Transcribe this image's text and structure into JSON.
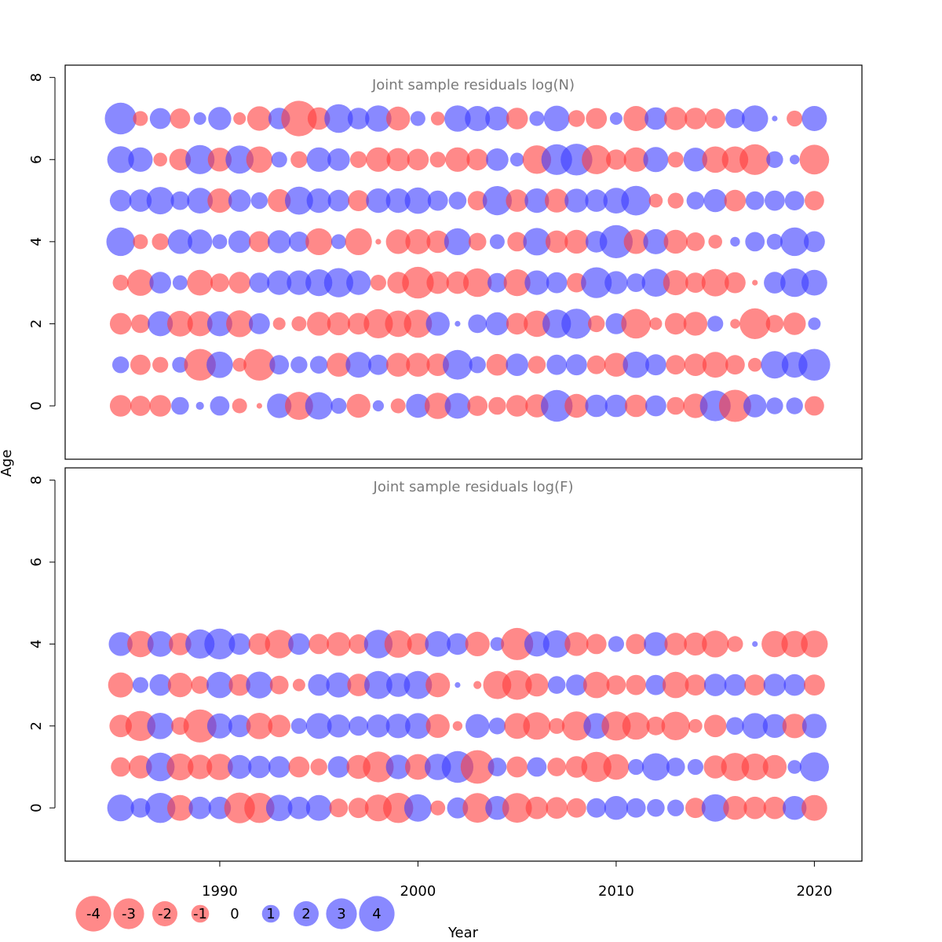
{
  "chart_data": {
    "type": "scatter",
    "ylabel": "Age",
    "xlabel": "Year",
    "x_ticks": [
      "1990",
      "2000",
      "2010",
      "2020"
    ],
    "y_ticks": [
      "0",
      "2",
      "4",
      "6",
      "8"
    ],
    "colors": {
      "negative": "#ff3b3b",
      "positive": "#3b3bff"
    },
    "xlim": [
      1982.2,
      2022.4
    ],
    "years": [
      1985,
      1986,
      1987,
      1988,
      1989,
      1990,
      1991,
      1992,
      1993,
      1994,
      1995,
      1996,
      1997,
      1998,
      1999,
      2000,
      2001,
      2002,
      2003,
      2004,
      2005,
      2006,
      2007,
      2008,
      2009,
      2010,
      2011,
      2012,
      2013,
      2014,
      2015,
      2016,
      2017,
      2018,
      2019,
      2020
    ],
    "legend": {
      "labels": [
        "-4",
        "-3",
        "-2",
        "-1",
        "0",
        "1",
        "2",
        "3",
        "4"
      ],
      "values": [
        -4,
        -3,
        -2,
        -1,
        0,
        1,
        2,
        3,
        4
      ],
      "position": "bottom-left"
    },
    "panels": [
      {
        "title": "Joint sample residuals log(N)",
        "ylim": [
          -1.3,
          8.3
        ],
        "ages": [
          0,
          1,
          2,
          3,
          4,
          5,
          6,
          7
        ],
        "residuals": [
          [
            -1.5,
            -1.3,
            -1.5,
            1.0,
            0.2,
            1.2,
            -0.7,
            -0.1,
            1.9,
            -2.5,
            2.4,
            0.8,
            -1.8,
            0.4,
            -0.7,
            1.8,
            -2.2,
            2.1,
            -1.3,
            -1.0,
            -1.5,
            -1.7,
            3.2,
            -1.8,
            1.6,
            1.6,
            -1.6,
            1.4,
            -1.0,
            -1.9,
            3.0,
            -3.3,
            1.7,
            0.9,
            0.9,
            -1.2
          ],
          [
            0.9,
            -1.3,
            -0.8,
            0.8,
            -3.2,
            2.2,
            -0.6,
            -3.2,
            1.2,
            0.9,
            1.0,
            -1.8,
            2.1,
            1.3,
            -1.8,
            -1.8,
            -1.6,
            2.8,
            0.9,
            -1.5,
            1.6,
            -1.0,
            1.3,
            1.4,
            -1.1,
            -1.8,
            2.2,
            1.4,
            -1.2,
            -1.6,
            -2.1,
            -1.2,
            -0.6,
            2.4,
            2.1,
            3.2
          ],
          [
            -1.5,
            -1.1,
            2.0,
            -2.1,
            -2.0,
            2.0,
            -2.3,
            1.4,
            -0.5,
            -0.7,
            -1.8,
            -1.7,
            -1.5,
            -2.7,
            -2.2,
            -2.5,
            1.8,
            0.1,
            1.1,
            1.7,
            -1.5,
            -2.2,
            2.6,
            2.9,
            -0.9,
            1.4,
            -2.8,
            -0.5,
            -1.5,
            -1.8,
            0.8,
            -0.3,
            -3.0,
            -1.0,
            -1.6,
            0.5
          ],
          [
            -0.8,
            -2.2,
            1.5,
            0.7,
            -2.1,
            -1.1,
            -1.5,
            1.3,
            1.9,
            1.9,
            2.3,
            2.7,
            1.9,
            -0.8,
            -1.5,
            -3.2,
            -1.6,
            -1.6,
            -2.6,
            1.2,
            -2.3,
            1.9,
            1.4,
            -1.2,
            3.0,
            1.7,
            1.1,
            2.5,
            -2.0,
            -1.3,
            -2.4,
            -1.4,
            -0.1,
            1.5,
            2.6,
            2.1
          ],
          [
            2.6,
            -0.7,
            -0.9,
            1.9,
            1.9,
            0.7,
            1.6,
            -1.4,
            1.7,
            1.3,
            -2.3,
            0.7,
            -2.3,
            -0.1,
            -1.9,
            -2.0,
            -1.6,
            2.3,
            -1.0,
            0.7,
            -1.2,
            2.4,
            -1.6,
            -1.8,
            1.5,
            3.5,
            -1.9,
            2.0,
            -1.8,
            -1.1,
            -0.6,
            0.3,
            1.2,
            0.8,
            2.6,
            1.4
          ],
          [
            1.5,
            1.6,
            2.4,
            1.1,
            2.1,
            -1.9,
            1.6,
            0.9,
            -1.7,
            2.5,
            1.9,
            1.5,
            -1.4,
            1.9,
            1.9,
            2.2,
            1.3,
            1.0,
            -1.2,
            2.7,
            -1.6,
            1.9,
            -1.8,
            1.8,
            1.6,
            2.1,
            2.8,
            -0.6,
            -0.8,
            1.0,
            1.7,
            -1.5,
            1.1,
            1.3,
            1.2,
            -1.2
          ],
          [
            2.3,
            1.9,
            -0.6,
            -1.5,
            2.7,
            -1.8,
            2.5,
            -2.2,
            0.8,
            -0.9,
            1.9,
            1.6,
            -0.9,
            -1.9,
            -1.7,
            -1.5,
            -0.8,
            -1.9,
            -1.5,
            1.6,
            0.6,
            -2.6,
            3.0,
            3.2,
            -2.7,
            -1.3,
            -1.9,
            2.0,
            -0.8,
            1.8,
            -2.2,
            -2.2,
            -3.0,
            0.9,
            0.3,
            -2.8
          ],
          [
            3.2,
            -0.7,
            1.4,
            -1.3,
            0.5,
            1.7,
            -0.5,
            -1.9,
            1.5,
            -4.0,
            -1.6,
            2.6,
            1.5,
            2.2,
            -1.8,
            0.7,
            -0.6,
            2.2,
            2.0,
            1.8,
            -1.5,
            0.7,
            2.1,
            -0.9,
            -1.4,
            0.5,
            -2.0,
            1.6,
            -1.7,
            -1.5,
            -1.3,
            1.2,
            2.2,
            0.1,
            -0.8,
            2.0
          ]
        ]
      },
      {
        "title": "Joint sample residuals log(F)",
        "ylim": [
          -1.3,
          8.3
        ],
        "ages": [
          0,
          1,
          2,
          3,
          4
        ],
        "residuals": [
          [
            2.3,
            1.2,
            2.9,
            -2.1,
            1.6,
            1.6,
            -3.0,
            -2.9,
            2.2,
            1.6,
            2.1,
            -1.1,
            -1.3,
            -2.3,
            -2.9,
            2.4,
            -0.7,
            1.4,
            -2.8,
            1.8,
            -2.8,
            -1.6,
            -1.5,
            -1.2,
            1.2,
            1.8,
            1.2,
            1.0,
            0.9,
            -1.3,
            2.4,
            -1.8,
            -1.6,
            -1.6,
            1.8,
            -2.1
          ],
          [
            -1.2,
            -1.7,
            2.6,
            -2.3,
            -1.9,
            -2.2,
            1.8,
            1.6,
            1.5,
            -1.4,
            -0.9,
            1.5,
            -1.8,
            -3.0,
            1.9,
            -2.1,
            2.2,
            3.2,
            -3.6,
            1.1,
            -1.4,
            1.2,
            -1.1,
            -1.5,
            -2.9,
            -2.1,
            0.8,
            2.4,
            1.1,
            0.8,
            -1.7,
            -2.5,
            -2.3,
            -1.8,
            0.6,
            2.7
          ],
          [
            -1.6,
            -2.9,
            2.2,
            -1.0,
            -3.5,
            2.0,
            1.6,
            -2.2,
            -1.6,
            0.8,
            2.1,
            1.7,
            1.2,
            1.7,
            1.9,
            2.1,
            -1.8,
            -0.3,
            1.8,
            0.9,
            -2.1,
            -2.4,
            -0.8,
            -2.7,
            2.1,
            -2.7,
            -2.4,
            -1.1,
            -2.6,
            -0.6,
            -1.6,
            1.0,
            2.1,
            1.8,
            -1.9,
            1.9
          ],
          [
            -2.0,
            0.8,
            1.5,
            -1.9,
            -1.0,
            2.2,
            -1.5,
            2.3,
            -1.1,
            -0.5,
            1.5,
            2.0,
            -1.6,
            2.5,
            1.8,
            2.5,
            -1.9,
            0.1,
            -0.2,
            -2.5,
            -2.8,
            -1.7,
            1.0,
            1.4,
            -2.2,
            -1.2,
            -1.3,
            1.3,
            -2.2,
            -1.4,
            1.6,
            1.5,
            -1.4,
            1.6,
            1.5,
            -1.4
          ],
          [
            1.8,
            -2.2,
            2.1,
            -1.6,
            2.7,
            3.0,
            1.5,
            -1.5,
            -2.6,
            1.5,
            -1.3,
            -1.8,
            -1.2,
            2.6,
            -2.4,
            -1.5,
            2.1,
            1.5,
            -1.9,
            0.6,
            -3.3,
            2.0,
            2.4,
            -1.8,
            -1.3,
            0.8,
            -1.3,
            1.8,
            -1.6,
            -1.7,
            -2.3,
            -0.8,
            0.1,
            -2.2,
            -2.2,
            -2.3
          ]
        ]
      }
    ]
  }
}
